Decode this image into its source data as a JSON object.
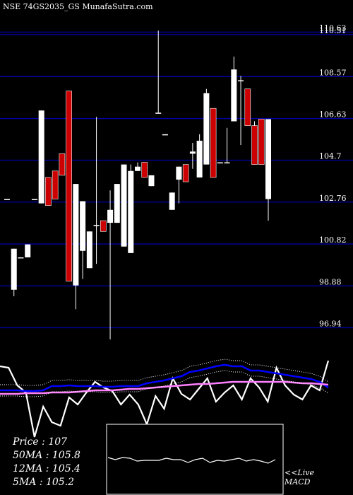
{
  "title": "NSE 74GS2035_GS MunafaSutra.com",
  "chart_data": {
    "type": "candlestick",
    "price_panel": {
      "y_ticks": [
        110.63,
        110.51,
        108.57,
        106.63,
        104.7,
        102.76,
        100.82,
        98.88,
        96.94
      ],
      "y_tick_labels": [
        "110.63",
        "110.51",
        "108.57",
        "106.63",
        "104.7",
        "102.76",
        "100.82",
        "98.88",
        "96.94"
      ],
      "ylim": [
        96.4,
        111.2
      ],
      "colors": {
        "up": "#ffffff",
        "down": "#cc0000",
        "grid": "#0000aa"
      },
      "candles": [
        {
          "o": 102.9,
          "h": 102.9,
          "l": 102.9,
          "c": 102.9
        },
        {
          "o": 98.7,
          "h": 100.6,
          "l": 98.4,
          "c": 100.6
        },
        {
          "o": 100.2,
          "h": 100.2,
          "l": 100.2,
          "c": 100.2
        },
        {
          "o": 100.2,
          "h": 100.8,
          "l": 100.2,
          "c": 100.8
        },
        {
          "o": 102.9,
          "h": 102.9,
          "l": 102.9,
          "c": 102.9
        },
        {
          "o": 102.7,
          "h": 107.0,
          "l": 102.7,
          "c": 107.0
        },
        {
          "o": 103.9,
          "h": 103.9,
          "l": 102.6,
          "c": 102.6
        },
        {
          "o": 104.2,
          "h": 104.2,
          "l": 102.9,
          "c": 102.9
        },
        {
          "o": 105.0,
          "h": 105.0,
          "l": 104.0,
          "c": 104.0
        },
        {
          "o": 107.9,
          "h": 107.9,
          "l": 99.1,
          "c": 99.1
        },
        {
          "o": 98.9,
          "h": 103.6,
          "l": 97.8,
          "c": 103.6
        },
        {
          "o": 100.5,
          "h": 102.8,
          "l": 99.2,
          "c": 102.8
        },
        {
          "o": 99.7,
          "h": 101.4,
          "l": 99.7,
          "c": 101.4
        },
        {
          "o": 101.7,
          "h": 106.7,
          "l": 99.9,
          "c": 101.7
        },
        {
          "o": 101.9,
          "h": 101.9,
          "l": 101.4,
          "c": 101.4
        },
        {
          "o": 101.8,
          "h": 103.3,
          "l": 96.4,
          "c": 102.4
        },
        {
          "o": 101.8,
          "h": 103.6,
          "l": 101.8,
          "c": 103.6
        },
        {
          "o": 100.7,
          "h": 104.5,
          "l": 100.7,
          "c": 104.5
        },
        {
          "o": 100.4,
          "h": 104.5,
          "l": 100.4,
          "c": 104.2
        },
        {
          "o": 104.2,
          "h": 104.6,
          "l": 104.2,
          "c": 104.4
        },
        {
          "o": 104.6,
          "h": 104.6,
          "l": 103.9,
          "c": 103.9
        },
        {
          "o": 103.5,
          "h": 104.0,
          "l": 103.5,
          "c": 104.0
        },
        {
          "o": 106.9,
          "h": 110.7,
          "l": 106.9,
          "c": 106.9
        },
        {
          "o": 105.9,
          "h": 105.9,
          "l": 105.9,
          "c": 105.9
        },
        {
          "o": 102.4,
          "h": 103.2,
          "l": 102.4,
          "c": 103.2
        },
        {
          "o": 103.8,
          "h": 104.4,
          "l": 102.7,
          "c": 104.4
        },
        {
          "o": 104.5,
          "h": 104.5,
          "l": 103.7,
          "c": 103.7
        },
        {
          "o": 105.0,
          "h": 105.5,
          "l": 104.3,
          "c": 105.1
        },
        {
          "o": 103.9,
          "h": 105.9,
          "l": 103.9,
          "c": 105.6
        },
        {
          "o": 104.5,
          "h": 108.0,
          "l": 104.5,
          "c": 107.8
        },
        {
          "o": 107.1,
          "h": 107.1,
          "l": 103.9,
          "c": 103.9
        },
        {
          "o": 104.6,
          "h": 104.6,
          "l": 104.6,
          "c": 104.6
        },
        {
          "o": 104.6,
          "h": 106.2,
          "l": 104.6,
          "c": 104.6
        },
        {
          "o": 106.5,
          "h": 109.5,
          "l": 106.5,
          "c": 108.9
        },
        {
          "o": 108.4,
          "h": 108.6,
          "l": 105.4,
          "c": 108.4
        },
        {
          "o": 108.0,
          "h": 108.0,
          "l": 106.3,
          "c": 106.3
        },
        {
          "o": 106.3,
          "h": 106.5,
          "l": 104.5,
          "c": 104.5
        },
        {
          "o": 106.6,
          "h": 106.6,
          "l": 104.5,
          "c": 104.5
        },
        {
          "o": 102.9,
          "h": 106.6,
          "l": 101.9,
          "c": 106.6
        }
      ]
    },
    "indicator_panel": {
      "series": [
        {
          "color": "#ffffff",
          "values": [
            518,
            520,
            545,
            555,
            618,
            575,
            597,
            602,
            562,
            572,
            555,
            540,
            548,
            553,
            572,
            558,
            572,
            600,
            560,
            578,
            535,
            557,
            565,
            550,
            535,
            568,
            555,
            545,
            565,
            535,
            548,
            568,
            520,
            545,
            558,
            565,
            545,
            552,
            510
          ]
        },
        {
          "color": "#0000ff",
          "values": [
            552,
            552,
            552,
            553,
            553,
            552,
            546,
            546,
            545,
            546,
            546,
            546,
            547,
            547,
            546,
            546,
            546,
            542,
            540,
            538,
            535,
            532,
            526,
            524,
            521,
            518,
            516,
            518,
            518,
            524,
            524,
            526,
            528,
            530,
            532,
            534,
            536,
            540,
            548
          ]
        },
        {
          "color": "#ff80ff",
          "values": [
            557,
            557,
            557,
            556,
            556,
            556,
            555,
            555,
            555,
            554,
            553,
            552,
            552,
            552,
            551,
            550,
            550,
            549,
            548,
            547,
            546,
            545,
            544,
            543,
            543,
            542,
            541,
            540,
            540,
            540,
            540,
            540,
            540,
            540,
            541,
            542,
            542,
            543,
            544
          ]
        }
      ],
      "dotted_band": {
        "color": "#ffffff"
      }
    },
    "macd_panel": {
      "color": "#ffffff",
      "values": [
        647,
        650,
        647,
        648,
        652,
        651,
        651,
        651,
        648,
        650,
        650,
        654,
        650,
        648,
        654,
        651,
        652,
        650,
        648,
        652,
        650,
        652,
        655,
        650
      ]
    }
  },
  "stats": {
    "price": "Price   :  107",
    "ma50": "50MA : 105.8",
    "ma12": "12MA : 105.4",
    "ma5": "5MA : 105.2"
  },
  "macd_label": "<<Live\nMACD"
}
